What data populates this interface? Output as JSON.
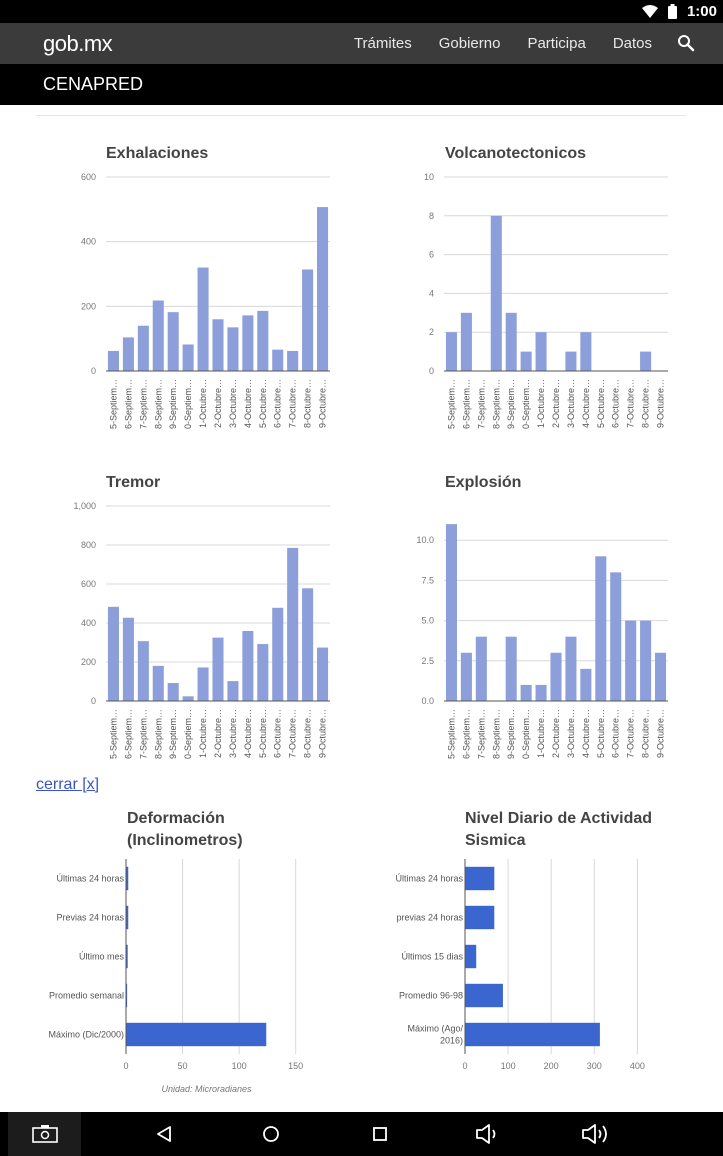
{
  "status_bar": {
    "time": "1:00"
  },
  "header": {
    "logo": "gob.mx",
    "nav": [
      "Trámites",
      "Gobierno",
      "Participa",
      "Datos"
    ]
  },
  "subheader": {
    "title": "CENAPRED"
  },
  "close_link": "cerrar [x]",
  "chart_data": [
    {
      "id": "exhalaciones",
      "type": "bar",
      "title": "Exhalaciones",
      "categories": [
        "5-Septiem…",
        "6-Septiem…",
        "7-Septiem…",
        "8-Septiem…",
        "9-Septiem…",
        "0-Septiem…",
        "1-Octubre…",
        "2-Octubre…",
        "3-Octubre…",
        "4-Octubre…",
        "5-Octubre…",
        "6-Octubre…",
        "7-Octubre…",
        "8-Octubre…",
        "9-Octubre…"
      ],
      "values": [
        62,
        104,
        140,
        218,
        182,
        82,
        320,
        160,
        135,
        172,
        186,
        66,
        62,
        314,
        507
      ],
      "ylim": [
        0,
        600
      ],
      "yticks": [
        0,
        200,
        400,
        600
      ],
      "ytick_labels": [
        "0",
        "200",
        "400",
        "600"
      ]
    },
    {
      "id": "volcanotectonicos",
      "type": "bar",
      "title": "Volcanotectonicos",
      "categories": [
        "5-Septiem…",
        "6-Septiem…",
        "7-Septiem…",
        "8-Septiem…",
        "9-Septiem…",
        "0-Septiem…",
        "1-Octubre…",
        "2-Octubre…",
        "3-Octubre…",
        "4-Octubre…",
        "5-Octubre…",
        "6-Octubre…",
        "7-Octubre…",
        "8-Octubre…",
        "9-Octubre…"
      ],
      "values": [
        2,
        3,
        0,
        8,
        3,
        1,
        2,
        0,
        1,
        2,
        0,
        0,
        0,
        1,
        0
      ],
      "ylim": [
        0,
        10
      ],
      "yticks": [
        0,
        2,
        4,
        6,
        8,
        10
      ],
      "ytick_labels": [
        "0",
        "2",
        "4",
        "6",
        "8",
        "10"
      ]
    },
    {
      "id": "tremor",
      "type": "bar",
      "title": "Tremor",
      "categories": [
        "5-Septiem…",
        "6-Septiem…",
        "7-Septiem…",
        "8-Septiem…",
        "9-Septiem…",
        "0-Septiem…",
        "1-Octubre…",
        "2-Octubre…",
        "3-Octubre…",
        "4-Octubre…",
        "5-Octubre…",
        "6-Octubre…",
        "7-Octubre…",
        "8-Octubre…",
        "9-Octubre…"
      ],
      "values": [
        483,
        427,
        307,
        180,
        92,
        24,
        172,
        325,
        102,
        359,
        292,
        478,
        785,
        578,
        274
      ],
      "ylim": [
        0,
        1000
      ],
      "yticks": [
        0,
        200,
        400,
        600,
        800,
        1000
      ],
      "ytick_labels": [
        "0",
        "200",
        "400",
        "600",
        "800",
        "1,000"
      ]
    },
    {
      "id": "explosion",
      "type": "bar",
      "title": "Explosión",
      "categories": [
        "5-Septiem…",
        "6-Septiem…",
        "7-Septiem…",
        "8-Septiem…",
        "9-Septiem…",
        "0-Septiem…",
        "1-Octubre…",
        "2-Octubre…",
        "3-Octubre…",
        "4-Octubre…",
        "5-Octubre…",
        "6-Octubre…",
        "7-Octubre…",
        "8-Octubre…",
        "9-Octubre…"
      ],
      "values": [
        11,
        3,
        4,
        0,
        4,
        1,
        1,
        3,
        4,
        2,
        9,
        8,
        5,
        5,
        3
      ],
      "ylim": [
        0,
        12.5
      ],
      "yticks": [
        0,
        2.5,
        5,
        7.5,
        10
      ],
      "ytick_labels": [
        "0.0",
        "2.5",
        "5.0",
        "7.5",
        "10.0"
      ]
    },
    {
      "id": "deformacion",
      "type": "bar-horizontal",
      "title_lines": [
        "Deformación",
        "(Inclinometros)"
      ],
      "categories": [
        [
          "Últimas 24 horas"
        ],
        [
          "Previas 24 horas"
        ],
        [
          "Último mes"
        ],
        [
          "Promedio semanal"
        ],
        [
          "Máximo (Dic/2000)"
        ]
      ],
      "values": [
        2,
        2,
        1.5,
        1,
        124
      ],
      "xlim": [
        0,
        160
      ],
      "xticks": [
        0,
        50,
        100,
        150
      ],
      "xtick_labels": [
        "0",
        "50",
        "100",
        "150"
      ],
      "note": "Unidad: Microradianes"
    },
    {
      "id": "nivel_diario",
      "type": "bar-horizontal",
      "title_lines": [
        "Nivel Diario de Actividad",
        "Sismica"
      ],
      "categories": [
        [
          "Últimas 24 horas"
        ],
        [
          "previas 24 horas"
        ],
        [
          "Últimos 15 dias"
        ],
        [
          "Promedio 96-98"
        ],
        [
          "Máximo (Ago/",
          "2016)"
        ]
      ],
      "values": [
        68,
        68,
        26,
        88,
        313
      ],
      "xlim": [
        0,
        420
      ],
      "xticks": [
        0,
        100,
        200,
        300,
        400
      ],
      "xtick_labels": [
        "0",
        "100",
        "200",
        "300",
        "400"
      ]
    }
  ],
  "colors": {
    "vertical_bar": "#8c9fdb",
    "horizontal_bar": "#3b66cf",
    "link": "#3a55c6",
    "nav_bg": "#3b3b3b"
  },
  "system_nav": {
    "icons": [
      "screenshot-icon",
      "back-icon",
      "home-icon",
      "recents-icon",
      "volume-down-icon",
      "volume-up-icon"
    ]
  }
}
